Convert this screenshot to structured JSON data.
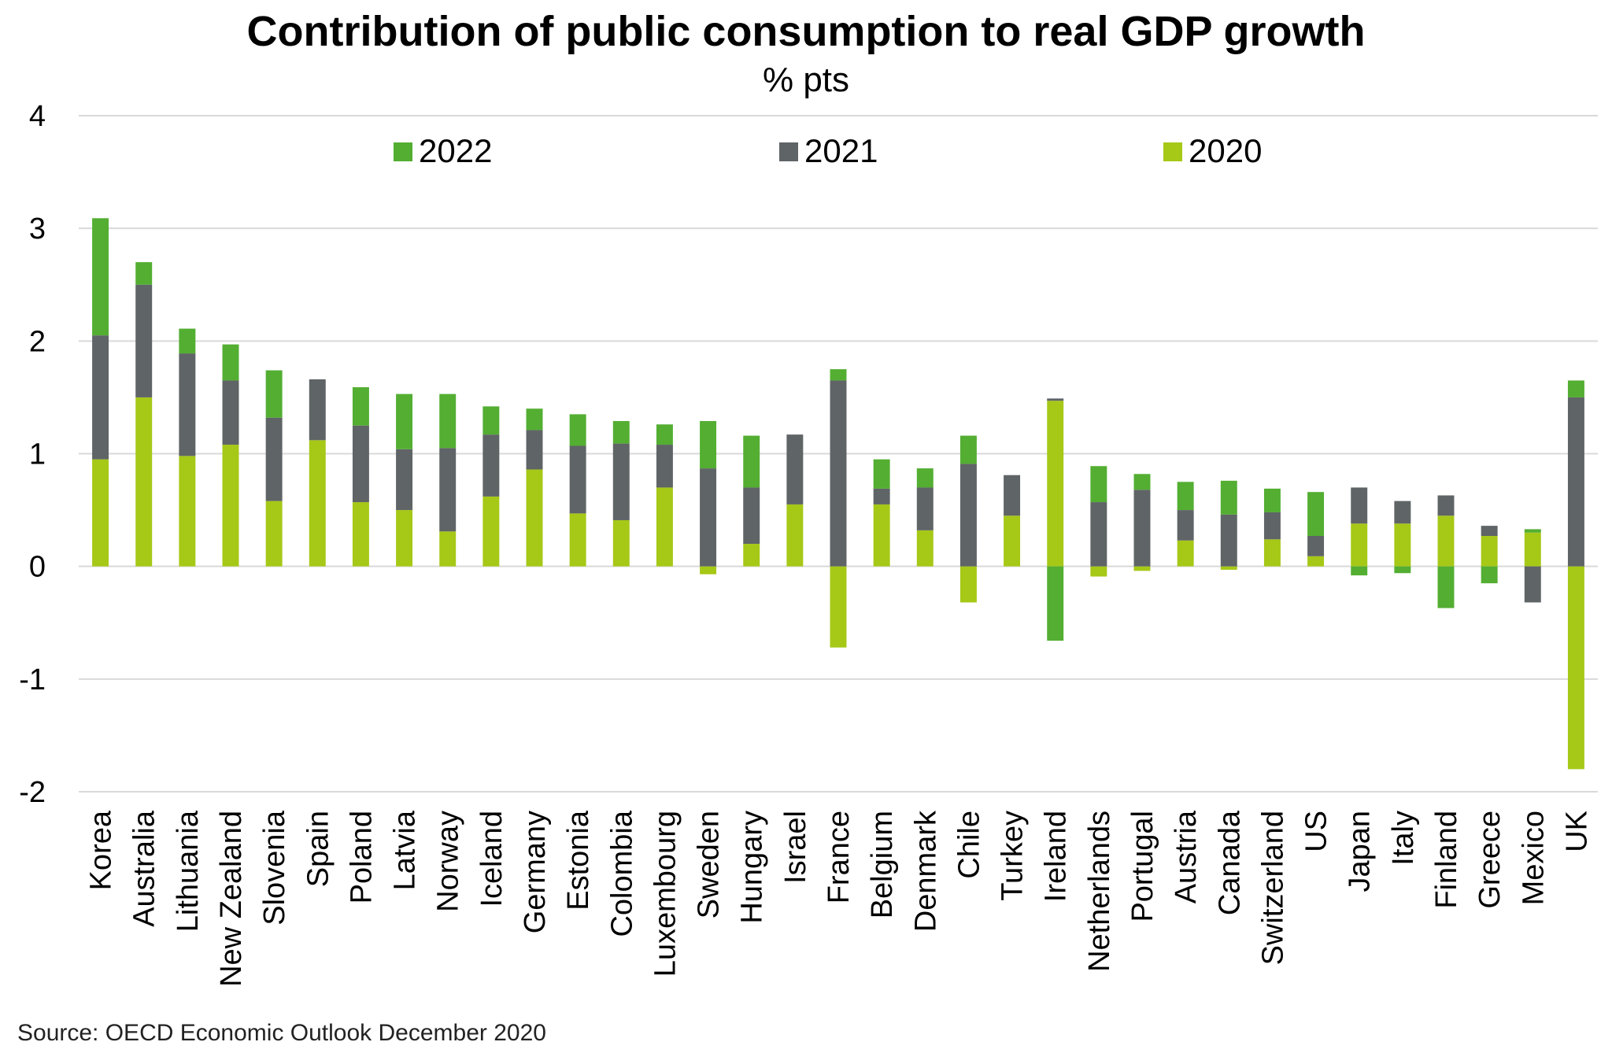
{
  "chart_data": {
    "type": "bar",
    "stacked": true,
    "title": "Contribution of public consumption to real GDP growth",
    "subtitle": "% pts",
    "source": "Source: OECD Economic Outlook December 2020",
    "ylim": [
      -2,
      4
    ],
    "yticks": [
      "-2",
      "-1",
      "0",
      "1",
      "2",
      "3",
      "4"
    ],
    "grid": true,
    "legend_position": "top",
    "categories": [
      "Korea",
      "Australia",
      "Lithuania",
      "New Zealand",
      "Slovenia",
      "Spain",
      "Poland",
      "Latvia",
      "Norway",
      "Iceland",
      "Germany",
      "Estonia",
      "Colombia",
      "Luxembourg",
      "Sweden",
      "Hungary",
      "Israel",
      "France",
      "Belgium",
      "Denmark",
      "Chile",
      "Turkey",
      "Ireland",
      "Netherlands",
      "Portugal",
      "Austria",
      "Canada",
      "Switzerland",
      "US",
      "Japan",
      "Italy",
      "Finland",
      "Greece",
      "Mexico",
      "UK"
    ],
    "series": [
      {
        "name": "2020",
        "color": "#a6c817",
        "values": [
          0.95,
          1.5,
          0.98,
          1.08,
          0.58,
          1.12,
          0.57,
          0.5,
          0.31,
          0.62,
          0.86,
          0.47,
          0.41,
          0.7,
          -0.07,
          0.2,
          0.55,
          -0.72,
          0.55,
          0.32,
          -0.32,
          0.45,
          1.47,
          -0.09,
          -0.04,
          0.23,
          -0.03,
          0.24,
          0.09,
          0.38,
          0.38,
          0.45,
          0.27,
          0.3,
          -1.8
        ]
      },
      {
        "name": "2021",
        "color": "#5f6466",
        "values": [
          1.1,
          1.0,
          0.91,
          0.57,
          0.74,
          0.54,
          0.68,
          0.54,
          0.74,
          0.55,
          0.35,
          0.6,
          0.68,
          0.38,
          0.87,
          0.5,
          0.62,
          1.65,
          0.14,
          0.38,
          0.91,
          0.36,
          0.02,
          0.57,
          0.68,
          0.27,
          0.46,
          0.24,
          0.18,
          0.32,
          0.2,
          0.18,
          0.09,
          -0.32,
          1.5
        ]
      },
      {
        "name": "2022",
        "color": "#53ae32",
        "values": [
          1.04,
          0.2,
          0.22,
          0.32,
          0.42,
          0.0,
          0.34,
          0.49,
          0.48,
          0.25,
          0.19,
          0.28,
          0.2,
          0.18,
          0.42,
          0.46,
          0.0,
          0.1,
          0.26,
          0.17,
          0.25,
          0.0,
          -0.66,
          0.32,
          0.14,
          0.25,
          0.3,
          0.21,
          0.39,
          -0.08,
          -0.06,
          -0.37,
          -0.15,
          0.03,
          0.15
        ]
      }
    ],
    "legend_order": [
      "2022",
      "2021",
      "2020"
    ]
  }
}
